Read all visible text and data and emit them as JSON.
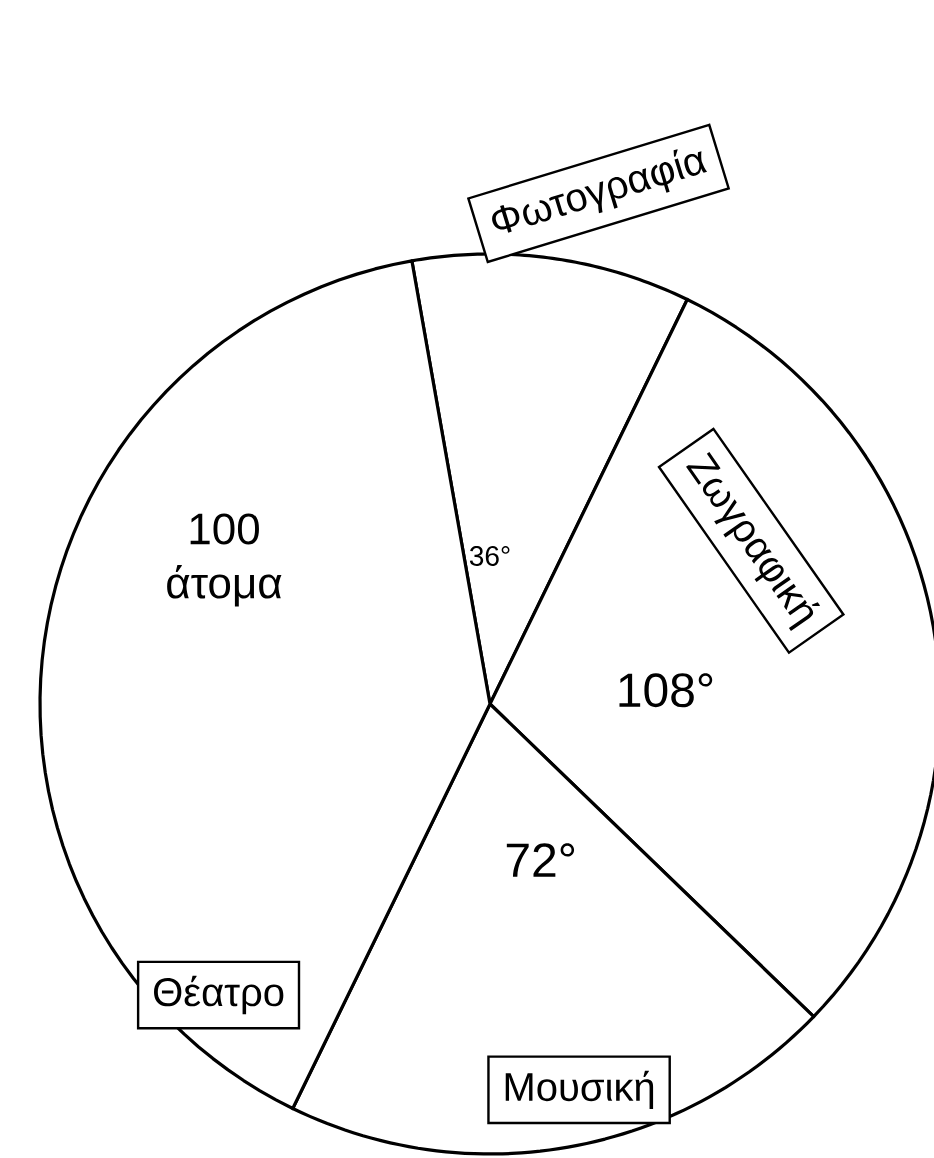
{
  "chart_data": {
    "type": "pie",
    "categories": [
      "Φωτογραφία",
      "Ζωγραφική",
      "Μουσική",
      "Θέατρο"
    ],
    "values": [
      36,
      108,
      72,
      144
    ],
    "colors": [
      "#ffffff",
      "#ffffff",
      "#ffffff",
      "#ffffff"
    ],
    "value_labels": [
      "36°",
      "108°",
      "72°",
      null
    ],
    "annotations": [
      "100 άτομα"
    ]
  }
}
